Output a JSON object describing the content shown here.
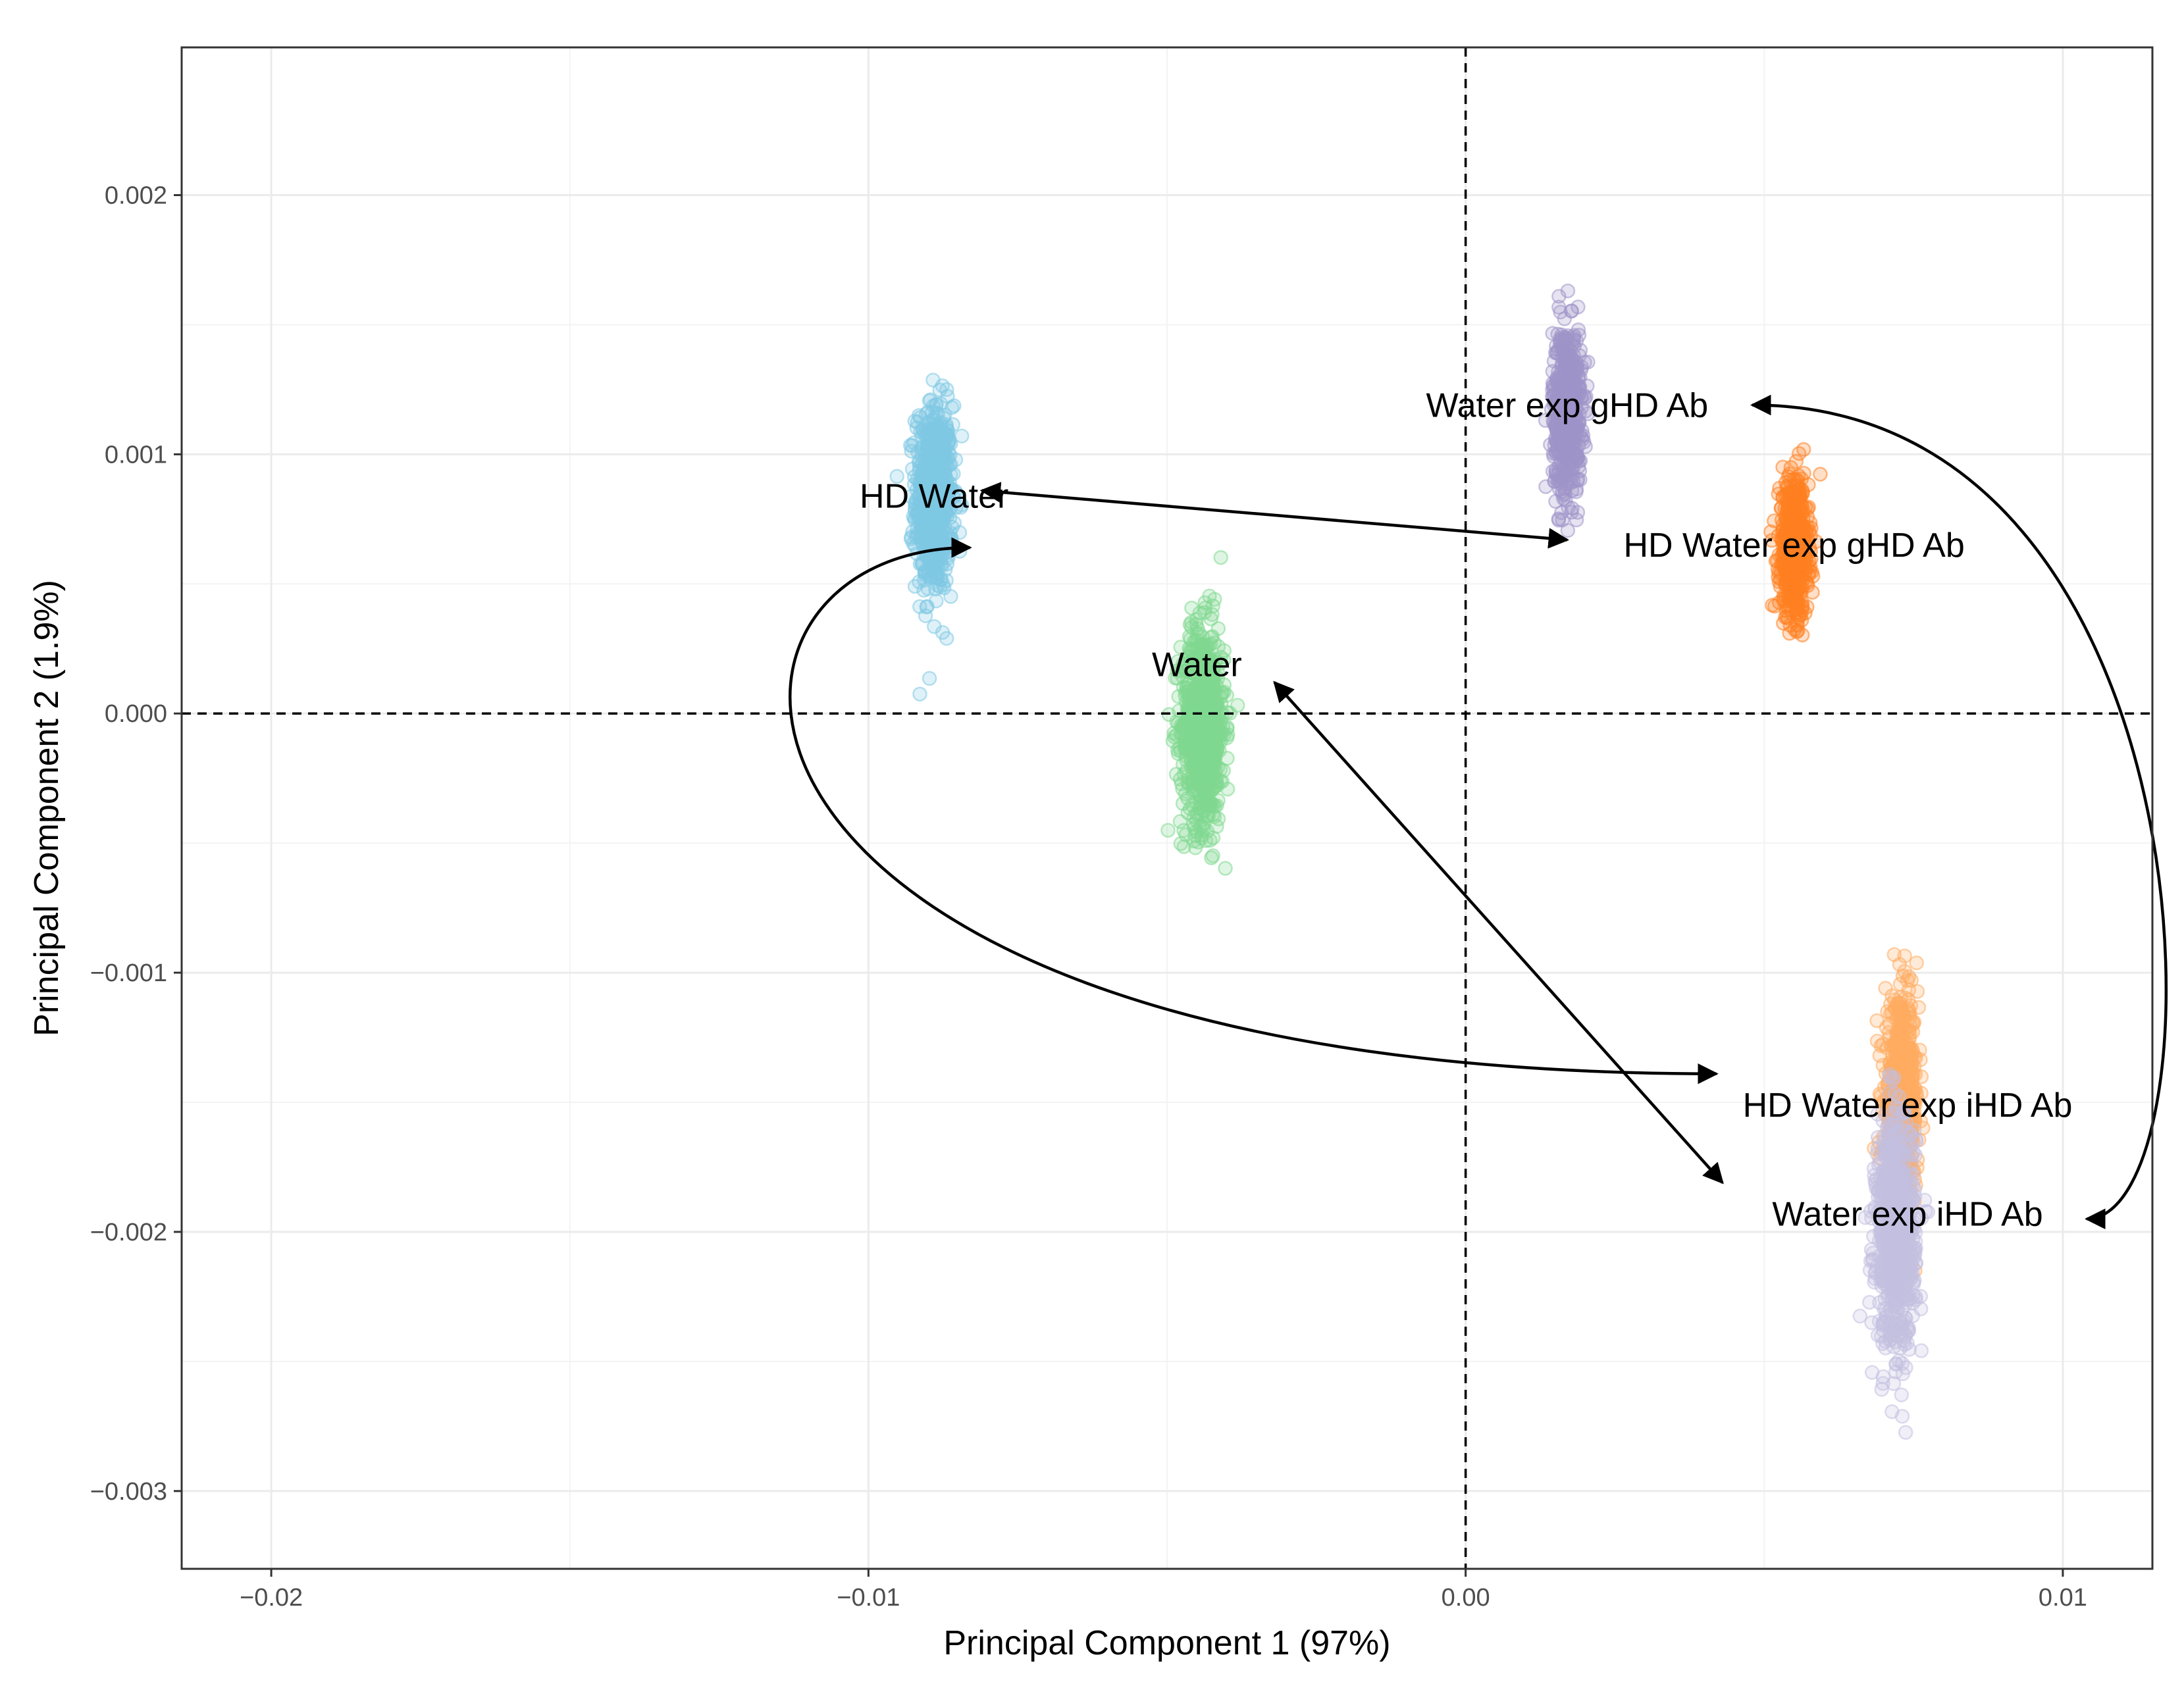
{
  "chart_data": {
    "type": "scatter",
    "xlabel": "Principal Component 1 (97%)",
    "ylabel": "Principal Component 2 (1.9%)",
    "xlim": [
      -0.0215,
      0.0115
    ],
    "ylim": [
      -0.0033,
      0.00257
    ],
    "x_ticks": [
      -0.02,
      -0.01,
      0.0,
      0.01
    ],
    "x_tick_labels": [
      "−0.02",
      "−0.01",
      "0.00",
      "0.01"
    ],
    "y_ticks": [
      0.002,
      0.001,
      0.0,
      -0.001,
      -0.002,
      -0.003
    ],
    "y_tick_labels": [
      "0.002",
      "0.001",
      "0.000",
      "−0.001",
      "−0.002",
      "−0.003"
    ],
    "grid": true,
    "reference_lines": {
      "x": 0.0,
      "y": 0.0,
      "style": "dashed"
    },
    "series": [
      {
        "name": "HD Water",
        "color": "#7ec8e3",
        "center": [
          -0.0089,
          0.00083
        ],
        "spread": [
          0.00028,
          0.00018
        ],
        "n": 700,
        "label_at": [
          -0.0089,
          0.00084
        ]
      },
      {
        "name": "Water",
        "color": "#7fd98f",
        "center": [
          -0.0044,
          -5e-05
        ],
        "spread": [
          0.00033,
          0.00019
        ],
        "n": 800,
        "label_at": [
          -0.0045,
          0.00019
        ]
      },
      {
        "name": "Water exp gHD Ab",
        "color": "#9e93c9",
        "center": [
          0.0017,
          0.00117
        ],
        "spread": [
          0.00022,
          0.00016
        ],
        "n": 600,
        "label_at": [
          0.0017,
          0.00119
        ]
      },
      {
        "name": "HD Water exp gHD Ab",
        "color": "#ff8020",
        "center": [
          0.0055,
          0.00064
        ],
        "spread": [
          0.00022,
          0.00013
        ],
        "n": 600,
        "label_at": [
          0.0055,
          0.00065
        ]
      },
      {
        "name": "HD Water exp iHD Ab",
        "color": "#ffab60",
        "center": [
          0.0073,
          -0.0015
        ],
        "spread": [
          0.00025,
          0.00019
        ],
        "n": 600,
        "label_at": [
          0.0074,
          -0.00151
        ]
      },
      {
        "name": "Water exp iHD Ab",
        "color": "#c3c0e0",
        "center": [
          0.0072,
          -0.002
        ],
        "spread": [
          0.0003,
          0.00022
        ],
        "n": 800,
        "label_at": [
          0.0074,
          -0.00193
        ]
      }
    ],
    "arrows": [
      {
        "from": [
          -0.0081,
          0.00086
        ],
        "to": [
          0.0017,
          0.00067
        ],
        "curve": 0,
        "heads": "both"
      },
      {
        "from": [
          -0.0083,
          0.00064
        ],
        "to": [
          0.0042,
          -0.00139
        ],
        "curve": -0.0052,
        "heads": "both"
      },
      {
        "from": [
          -0.0032,
          0.00012
        ],
        "to": [
          0.0043,
          -0.00181
        ],
        "curve": 0,
        "heads": "both"
      },
      {
        "from": [
          0.0048,
          0.00119
        ],
        "to": [
          0.0104,
          -0.00195
        ],
        "curve": 0.0079,
        "heads": "both"
      }
    ]
  }
}
